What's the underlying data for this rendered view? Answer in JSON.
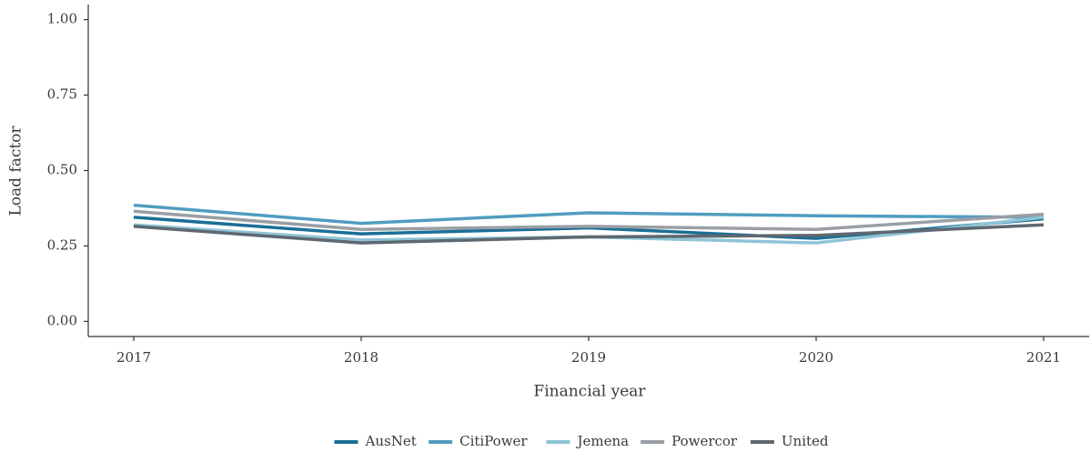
{
  "chart_data": {
    "type": "line",
    "x_label": "Financial year",
    "y_label": "Load factor",
    "x": [
      2017,
      2018,
      2019,
      2020,
      2021
    ],
    "series": [
      {
        "name": "AusNet",
        "color": "#1b6f97",
        "values": [
          0.345,
          0.29,
          0.31,
          0.275,
          0.34
        ]
      },
      {
        "name": "CitiPower",
        "color": "#4f9dc0",
        "values": [
          0.385,
          0.325,
          0.36,
          0.35,
          0.345
        ]
      },
      {
        "name": "Jemena",
        "color": "#8fc4d6",
        "values": [
          0.32,
          0.27,
          0.28,
          0.26,
          0.345
        ]
      },
      {
        "name": "Powercor",
        "color": "#9a9fa5",
        "values": [
          0.365,
          0.305,
          0.315,
          0.305,
          0.355
        ]
      },
      {
        "name": "United",
        "color": "#5e6870",
        "values": [
          0.315,
          0.26,
          0.28,
          0.285,
          0.32
        ]
      }
    ],
    "xlim": [
      2016.8,
      2021.2
    ],
    "xticks": [
      2017,
      2018,
      2019,
      2020,
      2021
    ],
    "ylim": [
      -0.05,
      1.05
    ],
    "yticks": [
      {
        "value": 0,
        "label": "0.00"
      },
      0.25,
      {
        "value": 0.5,
        "label": "0.50"
      },
      0.75,
      {
        "value": 1,
        "label": "1.00"
      }
    ],
    "legend": "bottom"
  }
}
